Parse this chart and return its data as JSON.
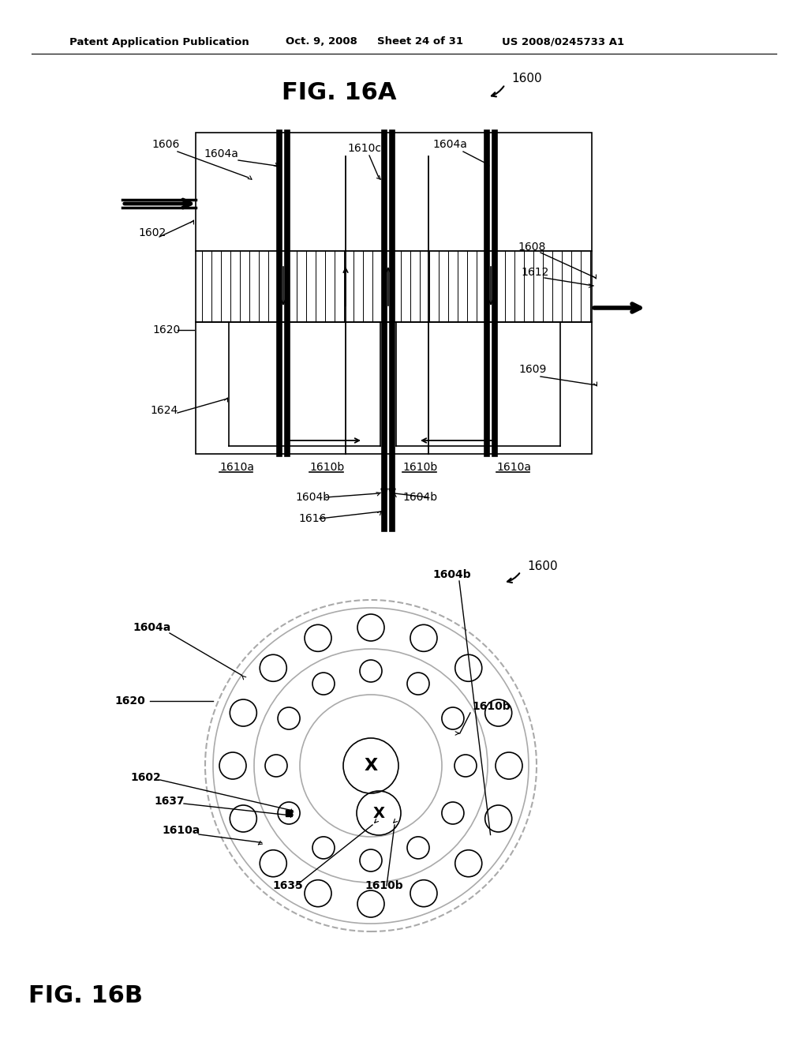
{
  "bg_color": "#ffffff",
  "line_color": "#000000",
  "gray_color": "#aaaaaa",
  "header1": "Patent Application Publication",
  "header2": "Oct. 9, 2008",
  "header3": "Sheet 24 of 31",
  "header4": "US 2008/0245733 A1"
}
